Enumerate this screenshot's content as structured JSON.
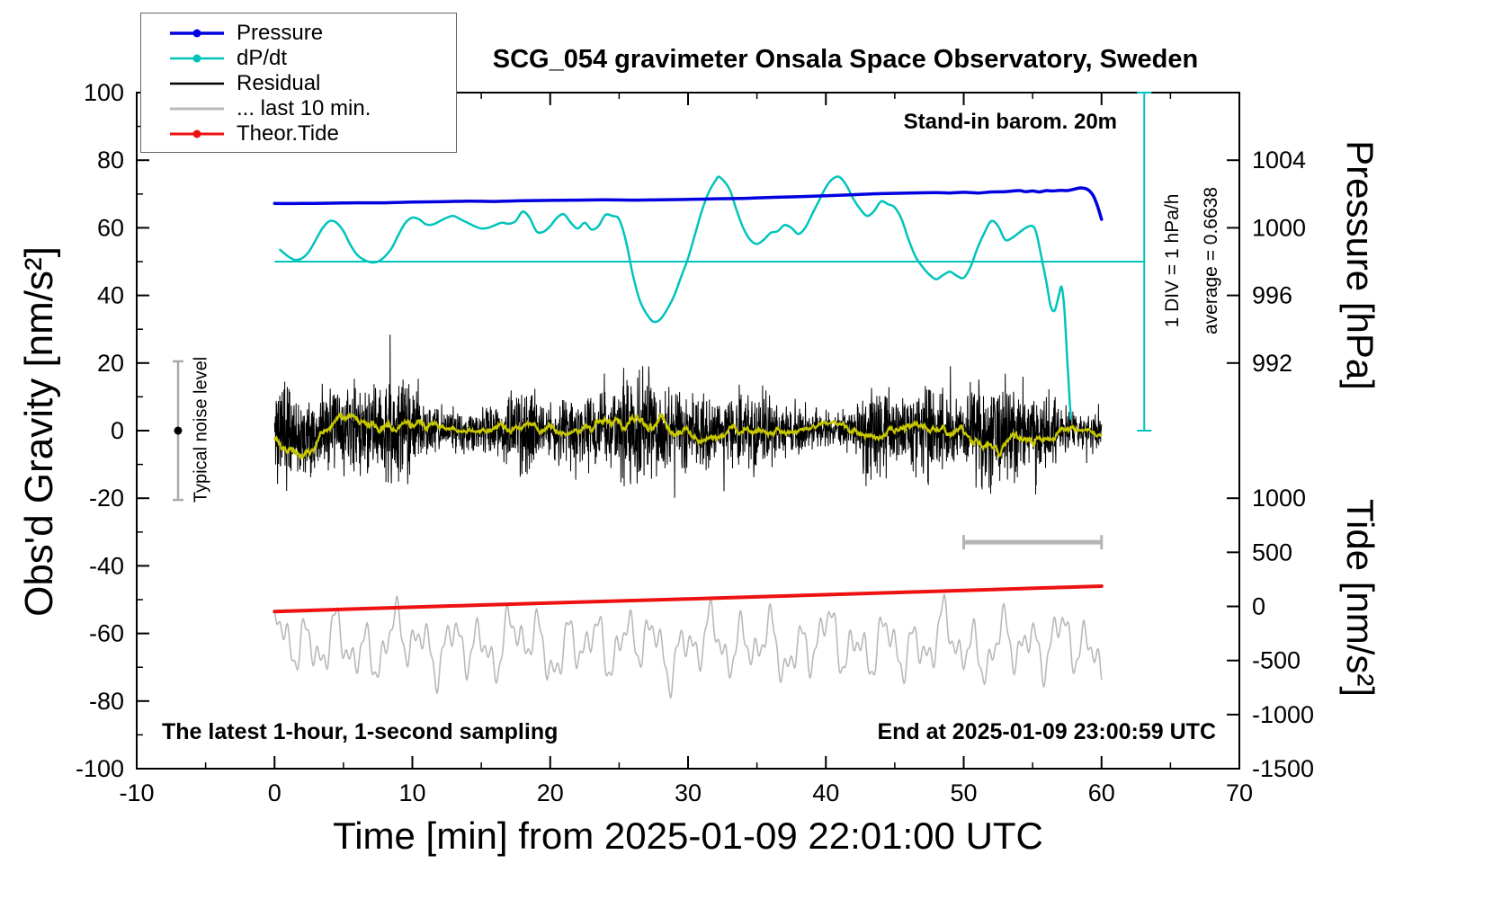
{
  "title": "SCG_054 gravimeter Onsala Space Observatory, Sweden",
  "annotations": {
    "barom": "Stand-in barom. 20m",
    "div_scale": "1 DIV = 1 hPa/h",
    "average": "average = 0.6638",
    "noise_level": "Typical noise level",
    "sampling": "The latest 1-hour, 1-second sampling",
    "end_time": "End at 2025-01-09 23:00:59 UTC"
  },
  "legend": {
    "items": [
      {
        "key": "pressure",
        "label": "Pressure",
        "color": "#0000e0",
        "marker": true,
        "sample_width": 3.5
      },
      {
        "key": "dpdt",
        "label": "dP/dt",
        "color": "#00c4bc",
        "marker": true,
        "sample_width": 2.5
      },
      {
        "key": "residual",
        "label": "Residual",
        "color": "#000000",
        "marker": false,
        "sample_width": 2.5
      },
      {
        "key": "last10",
        "label": "... last 10 min.",
        "color": "#b9b9b9",
        "marker": false,
        "sample_width": 3
      },
      {
        "key": "tide",
        "label": "Theor.Tide",
        "color": "#ee1111",
        "marker": true,
        "sample_width": 3
      }
    ]
  },
  "axes": {
    "x": {
      "label": "Time [min] from 2025-01-09 22:01:00 UTC",
      "min": -10,
      "max": 70,
      "ticks": [
        -10,
        0,
        10,
        20,
        30,
        40,
        50,
        60,
        70
      ],
      "minor_step": 5
    },
    "y_left": {
      "label": "Obs'd Gravity [nm/s²]",
      "min": -100,
      "max": 100,
      "ticks": [
        -100,
        -80,
        -60,
        -40,
        -20,
        0,
        20,
        40,
        60,
        80,
        100
      ],
      "minor_step": 10
    },
    "y_right_pressure": {
      "label": "Pressure [hPa]",
      "ticks": [
        {
          "text": "1004",
          "at": 80
        },
        {
          "text": "1000",
          "at": 60
        },
        {
          "text": "996",
          "at": 40
        },
        {
          "text": "992",
          "at": 20
        }
      ]
    },
    "y_right_tide": {
      "label": "Tide [nm/s²]",
      "ticks": [
        {
          "text": "1000",
          "at": -20
        },
        {
          "text": "500",
          "at": -36
        },
        {
          "text": "0",
          "at": -52
        },
        {
          "text": "-500",
          "at": -68
        },
        {
          "text": "-1000",
          "at": -84
        },
        {
          "text": "-1500",
          "at": -100
        }
      ]
    }
  },
  "chart_data": {
    "type": "line",
    "title": "SCG_054 gravimeter Onsala Space Observatory, Sweden",
    "xlabel": "Time [min] from 2025-01-09 22:01:00 UTC",
    "ylabel": "Obs'd Gravity [nm/s²]",
    "xlim": [
      -10,
      70
    ],
    "ylim": [
      -100,
      100
    ],
    "grid": false,
    "legend_position": "top-left",
    "series": [
      {
        "key": "last10",
        "name": "... last 10 min.",
        "color": "#b9b9b9",
        "width": 1.6,
        "type": "sines",
        "x0": 0,
        "x1": 60,
        "n": 1500,
        "base": -63.5,
        "components": [
          [
            2.1,
            5.5,
            0.8
          ],
          [
            1.13,
            4.0,
            2.2
          ],
          [
            4.4,
            3.0,
            1.1
          ],
          [
            0.53,
            2.2,
            3.0
          ],
          [
            7.7,
            1.5,
            0.0
          ]
        ]
      },
      {
        "key": "tide",
        "name": "Theor.Tide",
        "color": "#ee1111",
        "width": 4,
        "type": "points",
        "smooth": true,
        "points": [
          [
            0,
            -53.5
          ],
          [
            15,
            -51.6
          ],
          [
            30,
            -49.8
          ],
          [
            45,
            -47.9
          ],
          [
            60,
            -46.0
          ]
        ]
      },
      {
        "key": "residual",
        "name": "Residual",
        "color": "#000000",
        "width": 1,
        "type": "noise",
        "x0": 0,
        "x1": 60,
        "n": 3000,
        "seed": 11,
        "sigma_base": 5.2,
        "envelope": [
          [
            23,
            1.5,
            0.5
          ],
          [
            9,
            1.2,
            2.0
          ],
          [
            4.3,
            0.8,
            1.0
          ]
        ],
        "spike_prob": 0.012,
        "spike_gain": 2.0,
        "clip": 36
      },
      {
        "key": "residual-smooth",
        "name": "Residual smoothed",
        "color": "#c8c800",
        "width": 2,
        "type": "smooth",
        "window": 140,
        "gain": 5,
        "offset": 0.3
      },
      {
        "key": "dpdt-ref",
        "name": "dP/dt zero reference",
        "color": "#00c4bc",
        "width": 2,
        "type": "hline",
        "y": 50,
        "x0": 0,
        "x1": 63.1
      },
      {
        "key": "dpdt",
        "name": "dP/dt",
        "color": "#00c4bc",
        "width": 2.5,
        "type": "points",
        "smooth": true,
        "points": [
          [
            0.4,
            53.5
          ],
          [
            1,
            51.5
          ],
          [
            1.5,
            50.5
          ],
          [
            2,
            51
          ],
          [
            2.5,
            53
          ],
          [
            3,
            56.5
          ],
          [
            3.5,
            60
          ],
          [
            4,
            62
          ],
          [
            4.5,
            61.5
          ],
          [
            5,
            59
          ],
          [
            5.5,
            55
          ],
          [
            6,
            52
          ],
          [
            6.5,
            50.5
          ],
          [
            7,
            49.8
          ],
          [
            7.5,
            50
          ],
          [
            8,
            51.5
          ],
          [
            8.5,
            54
          ],
          [
            9,
            58
          ],
          [
            9.5,
            61.5
          ],
          [
            10,
            63
          ],
          [
            10.5,
            62.5
          ],
          [
            11,
            61
          ],
          [
            11.5,
            61
          ],
          [
            12,
            62
          ],
          [
            12.5,
            63
          ],
          [
            13,
            63.5
          ],
          [
            13.5,
            62.5
          ],
          [
            14,
            61.5
          ],
          [
            14.5,
            60.5
          ],
          [
            15,
            59.8
          ],
          [
            15.5,
            60
          ],
          [
            16,
            60.8
          ],
          [
            16.5,
            61.5
          ],
          [
            17,
            61.2
          ],
          [
            17.5,
            62
          ],
          [
            18,
            64.8
          ],
          [
            18.5,
            63
          ],
          [
            19,
            59
          ],
          [
            19.5,
            58.8
          ],
          [
            20,
            60.5
          ],
          [
            20.5,
            63
          ],
          [
            21,
            64
          ],
          [
            21.5,
            61.5
          ],
          [
            22,
            59.8
          ],
          [
            22.5,
            61.5
          ],
          [
            23,
            59.5
          ],
          [
            23.5,
            60.5
          ],
          [
            24,
            63.8
          ],
          [
            24.5,
            63.5
          ],
          [
            25,
            62.5
          ],
          [
            25.5,
            56
          ],
          [
            26,
            46
          ],
          [
            26.5,
            38.5
          ],
          [
            27,
            34.5
          ],
          [
            27.5,
            32.2
          ],
          [
            28,
            33
          ],
          [
            28.5,
            36
          ],
          [
            29,
            40
          ],
          [
            29.5,
            45.5
          ],
          [
            30,
            51
          ],
          [
            30.5,
            58
          ],
          [
            31,
            65
          ],
          [
            31.5,
            70.5
          ],
          [
            32,
            74
          ],
          [
            32.3,
            75
          ],
          [
            33,
            71.5
          ],
          [
            33.5,
            65.5
          ],
          [
            34,
            60
          ],
          [
            34.5,
            56.5
          ],
          [
            35,
            55.2
          ],
          [
            35.5,
            56.5
          ],
          [
            36,
            58.5
          ],
          [
            36.5,
            59
          ],
          [
            37,
            60.8
          ],
          [
            37.5,
            60
          ],
          [
            38,
            58.2
          ],
          [
            38.5,
            60
          ],
          [
            39,
            64
          ],
          [
            39.5,
            68
          ],
          [
            40,
            72
          ],
          [
            40.5,
            74.5
          ],
          [
            41,
            75
          ],
          [
            41.5,
            72.5
          ],
          [
            42,
            68.5
          ],
          [
            42.5,
            65.5
          ],
          [
            43,
            63.5
          ],
          [
            43.5,
            65
          ],
          [
            44,
            67.8
          ],
          [
            44.5,
            67
          ],
          [
            45,
            66
          ],
          [
            45.5,
            62.5
          ],
          [
            46,
            56.5
          ],
          [
            46.5,
            51.5
          ],
          [
            47,
            48.5
          ],
          [
            47.5,
            46.2
          ],
          [
            48,
            44.8
          ],
          [
            48.5,
            46
          ],
          [
            49,
            47
          ],
          [
            49.5,
            45.8
          ],
          [
            50,
            45.2
          ],
          [
            50.5,
            48.5
          ],
          [
            51,
            54
          ],
          [
            51.5,
            58.5
          ],
          [
            52,
            62
          ],
          [
            52.5,
            60.5
          ],
          [
            53,
            56.5
          ],
          [
            53.5,
            57
          ],
          [
            54,
            58.5
          ],
          [
            54.5,
            60
          ],
          [
            55,
            60.5
          ],
          [
            55.3,
            58
          ],
          [
            55.7,
            50
          ],
          [
            56,
            44
          ],
          [
            56.3,
            37
          ],
          [
            56.6,
            35.5
          ],
          [
            56.9,
            40
          ],
          [
            57.1,
            42.5
          ],
          [
            57.3,
            36
          ],
          [
            57.5,
            22
          ],
          [
            57.7,
            8
          ],
          [
            57.8,
            3.5
          ]
        ]
      },
      {
        "key": "pressure",
        "name": "Pressure",
        "color": "#0000e0",
        "width": 3.5,
        "type": "points",
        "smooth": true,
        "points": [
          [
            0,
            67.2
          ],
          [
            2,
            67.2
          ],
          [
            4,
            67.3
          ],
          [
            6,
            67.4
          ],
          [
            8,
            67.4
          ],
          [
            10,
            67.6
          ],
          [
            12,
            67.7
          ],
          [
            14,
            67.9
          ],
          [
            16,
            67.8
          ],
          [
            18,
            68.0
          ],
          [
            20,
            68.1
          ],
          [
            22,
            68.2
          ],
          [
            24,
            68.3
          ],
          [
            26,
            68.2
          ],
          [
            28,
            68.3
          ],
          [
            30,
            68.4
          ],
          [
            32,
            68.6
          ],
          [
            34,
            68.7
          ],
          [
            36,
            69.0
          ],
          [
            38,
            69.2
          ],
          [
            40,
            69.5
          ],
          [
            42,
            69.8
          ],
          [
            44,
            70.1
          ],
          [
            46,
            70.3
          ],
          [
            48,
            70.4
          ],
          [
            49,
            70.3
          ],
          [
            50,
            70.5
          ],
          [
            51,
            70.3
          ],
          [
            52,
            70.6
          ],
          [
            53,
            70.7
          ],
          [
            54,
            71.0
          ],
          [
            54.5,
            70.7
          ],
          [
            55,
            70.9
          ],
          [
            55.5,
            70.6
          ],
          [
            56,
            71.0
          ],
          [
            56.5,
            70.9
          ],
          [
            57,
            71.1
          ],
          [
            57.5,
            71.0
          ],
          [
            58,
            71.4
          ],
          [
            58.5,
            71.8
          ],
          [
            59,
            71.3
          ],
          [
            59.4,
            69.5
          ],
          [
            59.7,
            66.5
          ],
          [
            60,
            62.5
          ]
        ]
      }
    ],
    "scale_bar": {
      "x0": 50,
      "x1": 60,
      "y": -33,
      "color": "#b5b5b5"
    },
    "noise_bar": {
      "x": -7,
      "y0": -20.5,
      "y1": 20.5,
      "dot_y": 0,
      "color": "#aaaaaa"
    },
    "div_indicator": {
      "x": 63.1,
      "y0": 0,
      "y1": 100,
      "color": "#00c4bc"
    }
  }
}
